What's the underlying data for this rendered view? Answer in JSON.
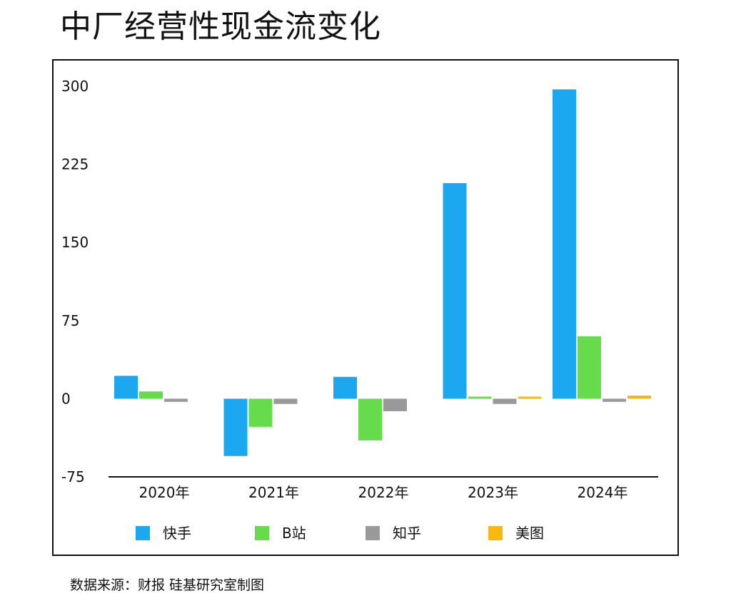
{
  "title": "中厂经营性现金流变化",
  "source": "数据来源：财报 硅基研究室制图",
  "chart_data": {
    "type": "bar",
    "categories": [
      "2020年",
      "2021年",
      "2022年",
      "2023年",
      "2024年"
    ],
    "series": [
      {
        "name": "快手",
        "color": "#1ca8f0",
        "values": [
          22,
          -55,
          21,
          207,
          297
        ]
      },
      {
        "name": "B站",
        "color": "#66dc4c",
        "values": [
          7,
          -27,
          -40,
          2,
          60
        ]
      },
      {
        "name": "知乎",
        "color": "#999999",
        "values": [
          -3,
          -5,
          -12,
          -5,
          -3
        ]
      },
      {
        "name": "美图",
        "color": "#f5b90f",
        "values": [
          0,
          0,
          0,
          2,
          3
        ]
      }
    ],
    "yticks": [
      300,
      225,
      150,
      75,
      0,
      -75
    ],
    "ylim": [
      -75,
      300
    ],
    "grid": false,
    "legend": "bottom"
  }
}
